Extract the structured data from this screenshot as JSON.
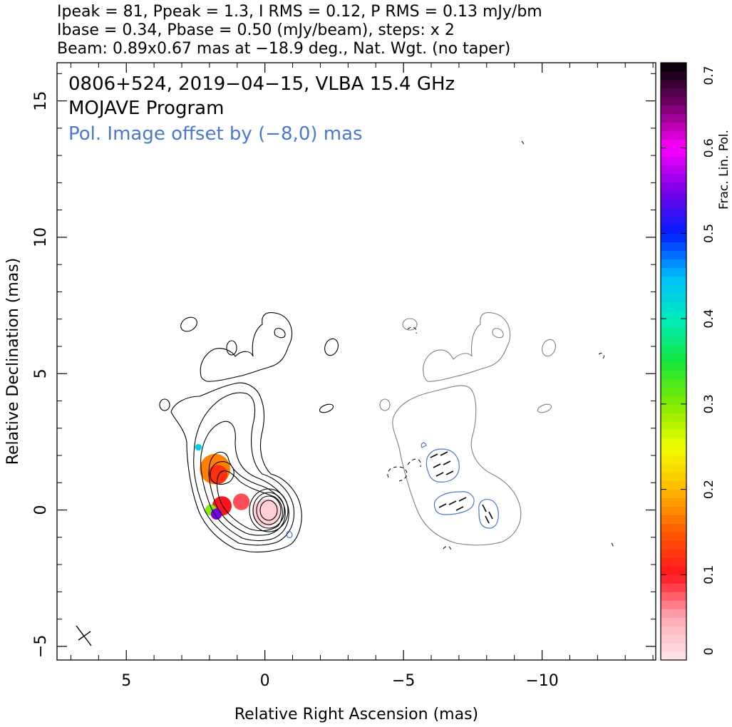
{
  "header": {
    "line1": "Ipeak = 81, Ppeak = 1.3, I RMS = 0.12, P RMS = 0.13 mJy/bm",
    "line2": "Ibase = 0.34, Pbase = 0.50 (mJy/beam), steps: x 2",
    "line3": "Beam: 0.89x0.67 mas at −18.9 deg., Nat. Wgt. (no taper)"
  },
  "plot_labels": {
    "source_line": "0806+524, 2019−04−15, VLBA 15.4 GHz",
    "program_line": "MOJAVE Program",
    "offset_note": "Pol. Image offset by (−8,0) mas"
  },
  "colors": {
    "stokes_i_contour": "#000000",
    "pol_contour": "#7f7f7f",
    "pol_intensity_contour": "#4a78d2",
    "offset_note": "#4a78d2"
  },
  "chart_data": {
    "type": "heatmap",
    "xlabel": "Relative Right Ascension (mas)",
    "ylabel": "Relative Declination (mas)",
    "xlim": [
      7.5,
      -14.1
    ],
    "ylim": [
      -5.5,
      16.4
    ],
    "x_ticks": [
      5,
      0,
      -5,
      -10
    ],
    "x_tick_labels": [
      "5",
      "0",
      "−5",
      "−10"
    ],
    "y_ticks": [
      -5,
      0,
      5,
      10,
      15
    ],
    "y_tick_labels": [
      "−5",
      "0",
      "5",
      "10",
      "15"
    ],
    "grid": false,
    "colorbar": {
      "label": "Frac. Lin. Pol.",
      "range": [
        0,
        0.7
      ],
      "ticks": [
        0,
        0.1,
        0.2,
        0.3,
        0.4,
        0.5,
        0.6,
        0.7
      ],
      "tick_labels": [
        "0",
        "0.1",
        "0.2",
        "0.3",
        "0.4",
        "0.5",
        "0.6",
        "0.7"
      ],
      "position": "right"
    },
    "beam": {
      "major_mas": 0.89,
      "minor_mas": 0.67,
      "pa_deg": -18.9,
      "location": "bottom-left"
    },
    "fractional_polarization_regions": [
      {
        "x": -0.05,
        "y": -0.1,
        "r": 0.5,
        "frac": 0.02
      },
      {
        "x": 1.8,
        "y": 1.5,
        "r": 0.55,
        "frac": 0.17
      },
      {
        "x": 1.7,
        "y": 1.3,
        "r": 0.35,
        "frac": 0.12
      },
      {
        "x": 1.55,
        "y": 0.15,
        "r": 0.35,
        "frac": 0.1
      },
      {
        "x": 0.85,
        "y": 0.3,
        "r": 0.3,
        "frac": 0.08
      },
      {
        "x": 1.95,
        "y": 0.0,
        "r": 0.2,
        "frac": 0.3
      },
      {
        "x": 1.75,
        "y": -0.15,
        "r": 0.2,
        "frac": 0.55
      },
      {
        "x": 2.4,
        "y": 2.3,
        "r": 0.12,
        "frac": 0.43
      }
    ]
  }
}
